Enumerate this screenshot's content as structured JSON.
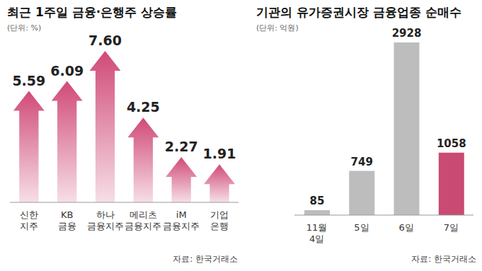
{
  "chart_data": [
    {
      "type": "bar",
      "title": "최근 1주일 금융·은행주 상승률",
      "subtitle": "(단위: %)",
      "categories": [
        "신한 지주",
        "KB 금융",
        "하나 금융지주",
        "메리츠 금융지주",
        "iM 금융지주",
        "기업 은행"
      ],
      "values": [
        5.59,
        6.09,
        7.6,
        4.25,
        2.27,
        1.91
      ],
      "value_labels": [
        "5.59",
        "6.09",
        "7.60",
        "4.25",
        "2.27",
        "1.91"
      ],
      "color": "#d04a78",
      "marker": "arrow",
      "data_labels": true,
      "tick_labels": "x",
      "source": "자료: 한국거래소"
    },
    {
      "type": "bar",
      "title": "기관의 유가증권시장 금융업종 순매수",
      "subtitle": "(단위: 억원)",
      "categories": [
        "11월 4일",
        "5일",
        "6일",
        "7일"
      ],
      "values": [
        85,
        749,
        2928,
        1058
      ],
      "colors": [
        "#bdbdbd",
        "#bdbdbd",
        "#bdbdbd",
        "#c94a72"
      ],
      "data_labels": true,
      "tick_labels": "x",
      "source": "자료: 한국거래소"
    }
  ]
}
